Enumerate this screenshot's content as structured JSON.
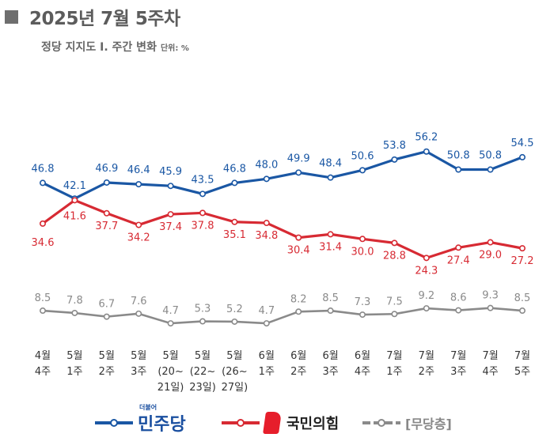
{
  "header": {
    "title": "2025년 7월 5주차",
    "subtitle": "정당 지지도 Ⅰ. 주간 변화",
    "unit": "단위: %"
  },
  "colors": {
    "minjoo": "#1a57a4",
    "ppp": "#d72a33",
    "none": "#8a8a8a"
  },
  "legend": {
    "minjoo_small": "더불어",
    "minjoo_label": "민주당",
    "ppp_label": "국민의힘",
    "none_label": "[무당층]"
  },
  "chart_data": {
    "type": "line",
    "title": "정당 지지도 Ⅰ. 주간 변화",
    "categories": [
      [
        "4월",
        "4주"
      ],
      [
        "5월",
        "1주"
      ],
      [
        "5월",
        "2주"
      ],
      [
        "5월",
        "3주"
      ],
      [
        "5월",
        "(20~",
        "21일)"
      ],
      [
        "5월",
        "(22~",
        "23일)"
      ],
      [
        "5월",
        "(26~",
        "27일)"
      ],
      [
        "6월",
        "1주"
      ],
      [
        "6월",
        "2주"
      ],
      [
        "6월",
        "3주"
      ],
      [
        "6월",
        "4주"
      ],
      [
        "7월",
        "1주"
      ],
      [
        "7월",
        "2주"
      ],
      [
        "7월",
        "3주"
      ],
      [
        "7월",
        "4주"
      ],
      [
        "7월",
        "5주"
      ]
    ],
    "series": [
      {
        "name": "더불어민주당",
        "values": [
          46.8,
          42.1,
          46.9,
          46.4,
          45.9,
          43.5,
          46.8,
          48.0,
          49.9,
          48.4,
          50.6,
          53.8,
          56.2,
          50.8,
          50.8,
          54.5
        ],
        "labels": [
          "46.8",
          "42.1",
          "46.9",
          "46.4",
          "45.9",
          "43.5",
          "46.8",
          "48.0",
          "49.9",
          "48.4",
          "50.6",
          "53.8",
          "56.2",
          "50.8",
          "50.8",
          "54.5"
        ]
      },
      {
        "name": "국민의힘",
        "values": [
          34.6,
          41.6,
          37.7,
          34.2,
          37.4,
          37.8,
          35.1,
          34.8,
          30.4,
          31.4,
          30.0,
          28.8,
          24.3,
          27.4,
          29.0,
          27.2
        ],
        "labels": [
          "34.6",
          "41.6",
          "37.7",
          "34.2",
          "37.4",
          "37.8",
          "35.1",
          "34.8",
          "30.4",
          "31.4",
          "30.0",
          "28.8",
          "24.3",
          "27.4",
          "29.0",
          "27.2"
        ]
      },
      {
        "name": "무당층",
        "values": [
          8.5,
          7.8,
          6.7,
          7.6,
          4.7,
          5.3,
          5.2,
          4.7,
          8.2,
          8.5,
          7.3,
          7.5,
          9.2,
          8.6,
          9.3,
          8.5
        ],
        "labels": [
          "8.5",
          "7.8",
          "6.7",
          "7.6",
          "4.7",
          "5.3",
          "5.2",
          "4.7",
          "8.2",
          "8.5",
          "7.3",
          "7.5",
          "9.2",
          "8.6",
          "9.3",
          "8.5"
        ]
      }
    ],
    "legend_position": "bottom",
    "grid": false
  }
}
